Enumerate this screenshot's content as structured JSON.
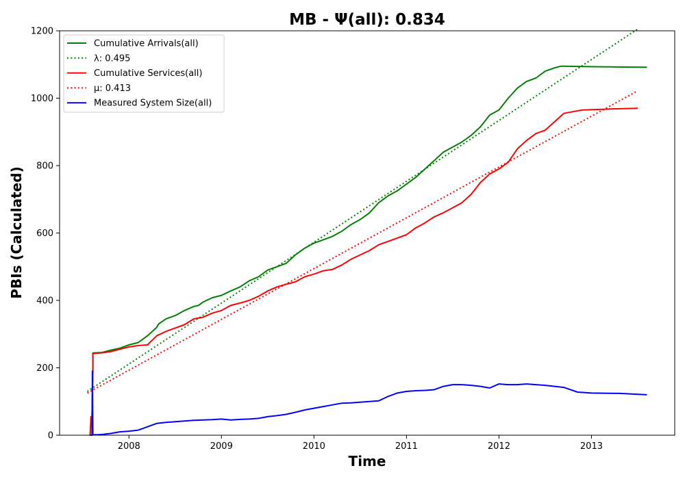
{
  "chart_data": {
    "type": "line",
    "title": "MB -  Ψ(all): 0.834",
    "xlabel": "Time",
    "ylabel": "PBIs (Calculated)",
    "xlim": [
      2007.25,
      2013.9
    ],
    "ylim": [
      0,
      1200
    ],
    "x_ticks": [
      2008,
      2009,
      2010,
      2011,
      2012,
      2013
    ],
    "x_tick_labels": [
      "2008",
      "2009",
      "2010",
      "2011",
      "2012",
      "2013"
    ],
    "y_ticks": [
      0,
      200,
      400,
      600,
      800,
      1000,
      1200
    ],
    "y_tick_labels": [
      "0",
      "200",
      "400",
      "600",
      "800",
      "1000",
      "1200"
    ],
    "grid": false,
    "legend_position": "top-left",
    "series": [
      {
        "name": "Cumulative Arrivals(all)",
        "style": "solid",
        "color": "#008000",
        "x": [
          2007.58,
          2007.59,
          2007.6,
          2007.61,
          2007.61,
          2007.7,
          2007.8,
          2007.9,
          2008.0,
          2008.1,
          2008.2,
          2008.3,
          2008.32,
          2008.4,
          2008.5,
          2008.6,
          2008.7,
          2008.75,
          2008.8,
          2008.9,
          2009.0,
          2009.1,
          2009.2,
          2009.3,
          2009.4,
          2009.5,
          2009.55,
          2009.6,
          2009.7,
          2009.8,
          2009.85,
          2009.9,
          2010.0,
          2010.1,
          2010.2,
          2010.3,
          2010.4,
          2010.5,
          2010.6,
          2010.7,
          2010.8,
          2010.9,
          2011.0,
          2011.1,
          2011.2,
          2011.3,
          2011.4,
          2011.5,
          2011.6,
          2011.7,
          2011.8,
          2011.9,
          2012.0,
          2012.1,
          2012.2,
          2012.3,
          2012.4,
          2012.5,
          2012.6,
          2012.67,
          2012.7,
          2012.9,
          2013.2,
          2013.6
        ],
        "y": [
          0,
          55,
          55,
          190,
          244,
          245,
          252,
          258,
          268,
          275,
          295,
          320,
          330,
          345,
          355,
          370,
          382,
          385,
          395,
          408,
          415,
          428,
          440,
          458,
          470,
          490,
          495,
          500,
          510,
          535,
          545,
          555,
          570,
          580,
          590,
          605,
          625,
          640,
          660,
          690,
          710,
          725,
          745,
          765,
          790,
          815,
          840,
          855,
          870,
          890,
          915,
          950,
          965,
          1000,
          1030,
          1050,
          1060,
          1080,
          1090,
          1095,
          1095,
          1094,
          1093,
          1092
        ]
      },
      {
        "name": "λ: 0.495",
        "style": "dotted",
        "color": "#008000",
        "x": [
          2007.55,
          2013.5
        ],
        "y": [
          130,
          1205
        ]
      },
      {
        "name": "Cumulative Services(all)",
        "style": "solid",
        "color": "#ff0000",
        "x": [
          2007.58,
          2007.59,
          2007.6,
          2007.61,
          2007.61,
          2007.7,
          2007.8,
          2007.9,
          2008.0,
          2008.1,
          2008.2,
          2008.3,
          2008.4,
          2008.5,
          2008.6,
          2008.7,
          2008.8,
          2008.9,
          2009.0,
          2009.1,
          2009.2,
          2009.3,
          2009.4,
          2009.5,
          2009.6,
          2009.7,
          2009.8,
          2009.9,
          2010.0,
          2010.1,
          2010.2,
          2010.3,
          2010.4,
          2010.5,
          2010.6,
          2010.7,
          2010.8,
          2010.9,
          2011.0,
          2011.1,
          2011.2,
          2011.3,
          2011.4,
          2011.5,
          2011.6,
          2011.7,
          2011.8,
          2011.9,
          2012.0,
          2012.1,
          2012.2,
          2012.3,
          2012.4,
          2012.5,
          2012.6,
          2012.7,
          2012.9,
          2013.2,
          2013.5
        ],
        "y": [
          0,
          55,
          55,
          190,
          242,
          244,
          248,
          255,
          262,
          266,
          268,
          295,
          308,
          318,
          328,
          345,
          350,
          362,
          370,
          385,
          392,
          400,
          412,
          428,
          440,
          448,
          455,
          470,
          478,
          488,
          492,
          505,
          522,
          535,
          548,
          565,
          575,
          585,
          595,
          615,
          630,
          648,
          660,
          675,
          690,
          715,
          750,
          775,
          790,
          810,
          850,
          875,
          895,
          905,
          930,
          955,
          965,
          968,
          970
        ]
      },
      {
        "name": "μ: 0.413",
        "style": "dotted",
        "color": "#ff0000",
        "x": [
          2007.55,
          2013.5
        ],
        "y": [
          125,
          1022
        ]
      },
      {
        "name": "Measured System Size(all)",
        "style": "solid",
        "color": "#0000ff",
        "x": [
          2007.58,
          2007.6,
          2007.605,
          2007.61,
          2007.62,
          2007.7,
          2007.8,
          2007.9,
          2008.0,
          2008.1,
          2008.2,
          2008.3,
          2008.4,
          2008.5,
          2008.6,
          2008.7,
          2008.8,
          2008.9,
          2009.0,
          2009.1,
          2009.2,
          2009.3,
          2009.4,
          2009.5,
          2009.6,
          2009.7,
          2009.8,
          2009.9,
          2010.0,
          2010.1,
          2010.2,
          2010.3,
          2010.4,
          2010.5,
          2010.6,
          2010.7,
          2010.8,
          2010.9,
          2011.0,
          2011.1,
          2011.2,
          2011.3,
          2011.4,
          2011.5,
          2011.6,
          2011.7,
          2011.8,
          2011.9,
          2012.0,
          2012.1,
          2012.2,
          2012.3,
          2012.4,
          2012.5,
          2012.6,
          2012.7,
          2012.85,
          2013.0,
          2013.3,
          2013.6
        ],
        "y": [
          0,
          0,
          190,
          2,
          1,
          2,
          5,
          10,
          12,
          15,
          25,
          35,
          38,
          40,
          42,
          44,
          45,
          46,
          48,
          45,
          47,
          48,
          50,
          55,
          58,
          62,
          68,
          75,
          80,
          85,
          90,
          95,
          96,
          98,
          100,
          102,
          115,
          125,
          130,
          132,
          133,
          135,
          145,
          150,
          150,
          148,
          145,
          140,
          152,
          150,
          150,
          152,
          150,
          148,
          145,
          142,
          128,
          125,
          124,
          120
        ]
      }
    ]
  },
  "legend": {
    "items": [
      {
        "label": "Cumulative Arrivals(all)",
        "color": "#008000",
        "style": "solid"
      },
      {
        "label": "λ: 0.495",
        "color": "#008000",
        "style": "dotted"
      },
      {
        "label": "Cumulative Services(all)",
        "color": "#ff0000",
        "style": "solid"
      },
      {
        "label": "μ: 0.413",
        "color": "#ff0000",
        "style": "dotted"
      },
      {
        "label": "Measured System Size(all)",
        "color": "#0000ff",
        "style": "solid"
      }
    ]
  }
}
